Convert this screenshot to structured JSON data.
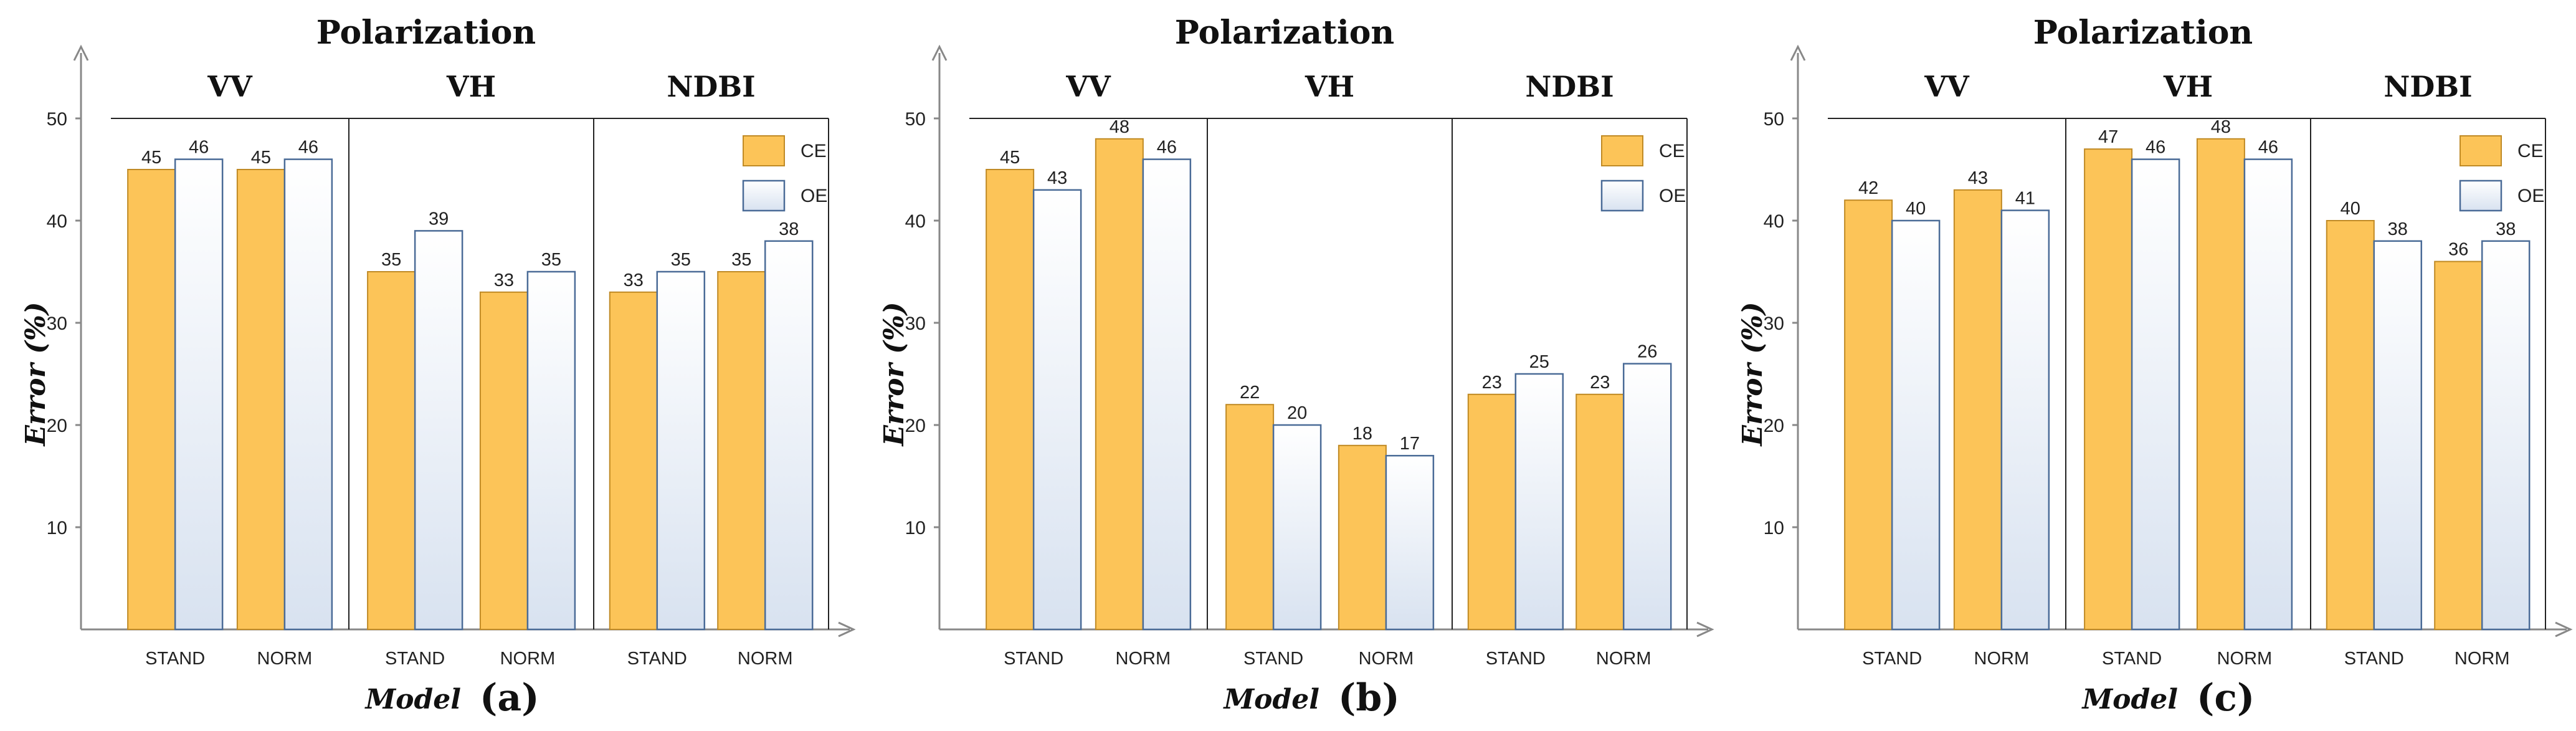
{
  "colors": {
    "ce": "#fcc458",
    "ce_stroke": "#c08a25",
    "oe_top": "#ffffff",
    "oe_bottom": "#d8e2f0",
    "oe_stroke": "#4a6b97",
    "axis": "#888888",
    "frame": "#222222"
  },
  "chart_data": [
    {
      "type": "bar",
      "panel_letter": "(a)",
      "title": "Polarization",
      "xlabel": "Model",
      "ylabel": "Error (%)",
      "ylim": [
        0,
        50
      ],
      "yticks": [
        "10",
        "20",
        "30",
        "40",
        "50"
      ],
      "groups": [
        "VV",
        "VH",
        "NDBI"
      ],
      "categories": [
        "STAND",
        "NORM",
        "STAND",
        "NORM",
        "STAND",
        "NORM"
      ],
      "legend": [
        "CE",
        "OE"
      ],
      "series": [
        {
          "name": "CE",
          "values": [
            45,
            45,
            35,
            33,
            33,
            35
          ],
          "labels": [
            "45",
            "45",
            "35",
            "33",
            "33",
            "35"
          ]
        },
        {
          "name": "OE",
          "values": [
            46,
            46,
            39,
            35,
            35,
            38
          ],
          "labels": [
            "46",
            "46",
            "39",
            "35",
            "35",
            "38"
          ]
        }
      ]
    },
    {
      "type": "bar",
      "panel_letter": "(b)",
      "title": "Polarization",
      "xlabel": "Model",
      "ylabel": "Error (%)",
      "ylim": [
        0,
        50
      ],
      "yticks": [
        "10",
        "20",
        "30",
        "40",
        "50"
      ],
      "groups": [
        "VV",
        "VH",
        "NDBI"
      ],
      "categories": [
        "STAND",
        "NORM",
        "STAND",
        "NORM",
        "STAND",
        "NORM"
      ],
      "legend": [
        "CE",
        "OE"
      ],
      "series": [
        {
          "name": "CE",
          "values": [
            45,
            48,
            22,
            18,
            23,
            23
          ],
          "labels": [
            "45",
            "48",
            "22",
            "18",
            "23",
            "23"
          ]
        },
        {
          "name": "OE",
          "values": [
            43,
            46,
            20,
            17,
            25,
            26
          ],
          "labels": [
            "43",
            "46",
            "20",
            "17",
            "25",
            "26"
          ]
        }
      ]
    },
    {
      "type": "bar",
      "panel_letter": "(c)",
      "title": "Polarization",
      "xlabel": "Model",
      "ylabel": "Error (%)",
      "ylim": [
        0,
        50
      ],
      "yticks": [
        "10",
        "20",
        "30",
        "40",
        "50"
      ],
      "groups": [
        "VV",
        "VH",
        "NDBI"
      ],
      "categories": [
        "STAND",
        "NORM",
        "STAND",
        "NORM",
        "STAND",
        "NORM"
      ],
      "legend": [
        "CE",
        "OE"
      ],
      "series": [
        {
          "name": "CE",
          "values": [
            42,
            43,
            47,
            48,
            40,
            36
          ],
          "labels": [
            "42",
            "43",
            "47",
            "48",
            "40",
            "36"
          ]
        },
        {
          "name": "OE",
          "values": [
            40,
            41,
            46,
            46,
            38,
            38
          ],
          "labels": [
            "40",
            "41",
            "46",
            "46",
            "38",
            "38"
          ]
        }
      ]
    }
  ]
}
